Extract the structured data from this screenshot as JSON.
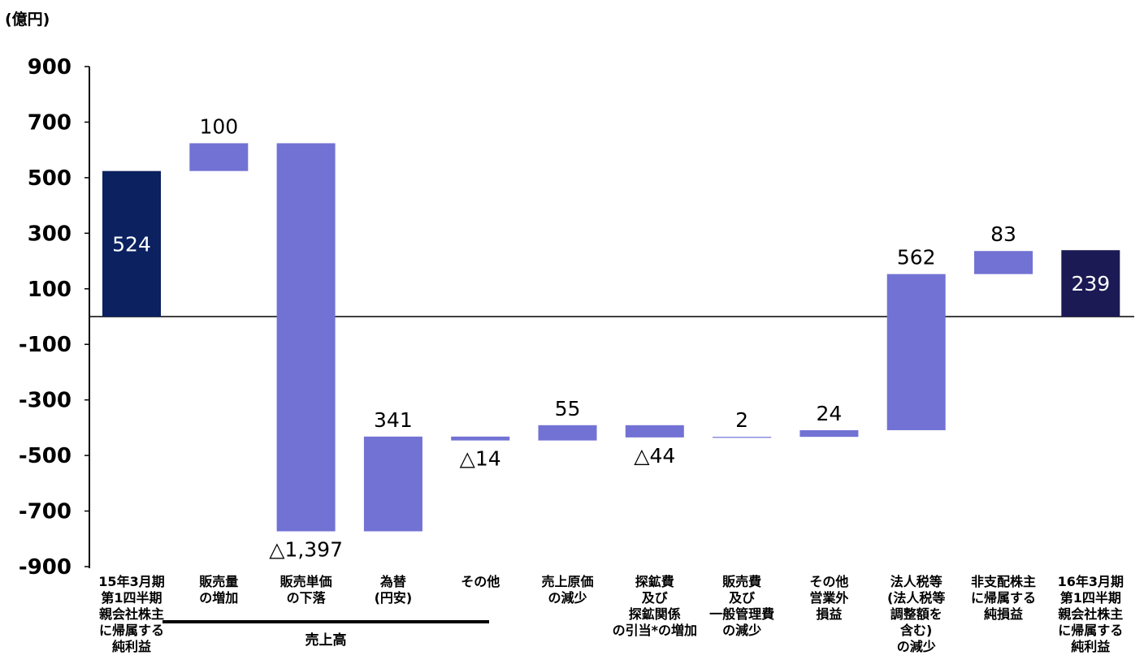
{
  "chart_data": {
    "type": "bar",
    "subtype": "waterfall",
    "unit_label": "(億円)",
    "y_ticks": [
      "900",
      "700",
      "500",
      "300",
      "100",
      "-100",
      "-300",
      "-500",
      "-700",
      "-900"
    ],
    "ylim": [
      -900,
      900
    ],
    "categories": [
      "15年3月期\n第1四半期\n親会社株主\nに帰属する\n純利益",
      "販売量\nの増加",
      "販売単価\nの下落",
      "為替\n(円安)",
      "その他",
      "売上原価\nの減少",
      "探鉱費\n及び\n探鉱関係\nの引当*の増加",
      "販売費\n及び\n一般管理費\nの減少",
      "その他\n営業外\n損益",
      "法人税等\n(法人税等\n調整額を\n含む)\nの減少",
      "非支配株主\nに帰属する\n純損益",
      "16年3月期\n第1四半期\n親会社株主\nに帰属する\n純利益"
    ],
    "value_labels": [
      "524",
      "100",
      "△1,397",
      "341",
      "△14",
      "55",
      "△44",
      "2",
      "24",
      "562",
      "83",
      "239"
    ],
    "bars": [
      {
        "start": 0,
        "end": 524,
        "kind": "total",
        "label_pos": "inside"
      },
      {
        "start": 524,
        "end": 624,
        "kind": "change",
        "label_pos": "above"
      },
      {
        "start": 624,
        "end": -773,
        "kind": "change",
        "label_pos": "below"
      },
      {
        "start": -773,
        "end": -432,
        "kind": "change",
        "label_pos": "above"
      },
      {
        "start": -432,
        "end": -446,
        "kind": "change",
        "label_pos": "below"
      },
      {
        "start": -446,
        "end": -391,
        "kind": "change",
        "label_pos": "above"
      },
      {
        "start": -391,
        "end": -435,
        "kind": "change",
        "label_pos": "below"
      },
      {
        "start": -435,
        "end": -433,
        "kind": "change",
        "label_pos": "above"
      },
      {
        "start": -433,
        "end": -409,
        "kind": "change",
        "label_pos": "above"
      },
      {
        "start": -409,
        "end": 153,
        "kind": "change",
        "label_pos": "above"
      },
      {
        "start": 153,
        "end": 236,
        "kind": "change",
        "label_pos": "above"
      },
      {
        "start": 0,
        "end": 239,
        "kind": "total",
        "label_pos": "inside"
      }
    ],
    "group_label": "売上高",
    "group_span": [
      1,
      4
    ],
    "colors": {
      "start_total": "#0b2160",
      "end_total": "#1b1a54",
      "change": "#7272d4"
    },
    "grid": false,
    "legend": "none"
  }
}
